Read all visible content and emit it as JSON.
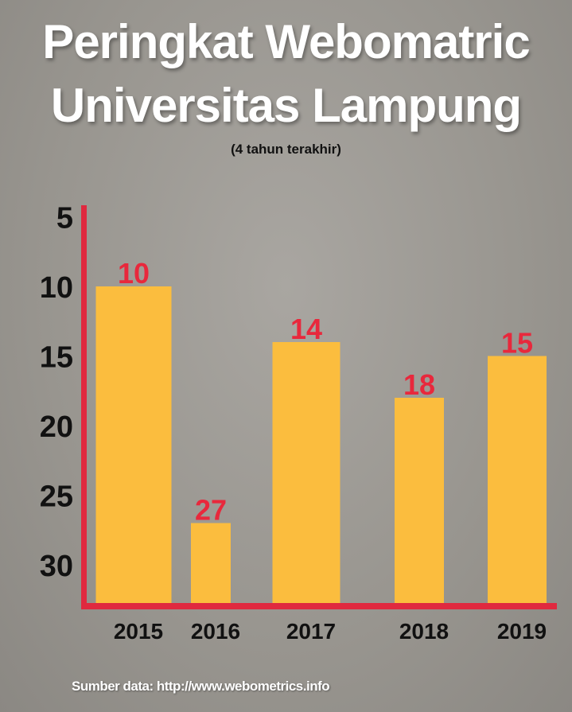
{
  "chart_data": {
    "type": "bar",
    "title": "Peringkat Webomatric",
    "title_line2": "Universitas Lampung",
    "subtitle": "(4 tahun terakhir)",
    "categories": [
      "2015",
      "2016",
      "2017",
      "2018",
      "2019"
    ],
    "values": [
      10,
      27,
      14,
      18,
      15
    ],
    "data_labels": [
      "10",
      "27",
      "14",
      "18",
      "15"
    ],
    "yticks": [
      "5",
      "10",
      "15",
      "20",
      "25",
      "30"
    ],
    "ylim": [
      5,
      30
    ],
    "y_inverted": true,
    "xlabel": "",
    "ylabel": "",
    "grid": false,
    "source": "Sumber data: http://www.webometrics.info",
    "colors": {
      "bar": "#fbbd3e",
      "label": "#e8283c",
      "axis": "#e0293f"
    }
  }
}
